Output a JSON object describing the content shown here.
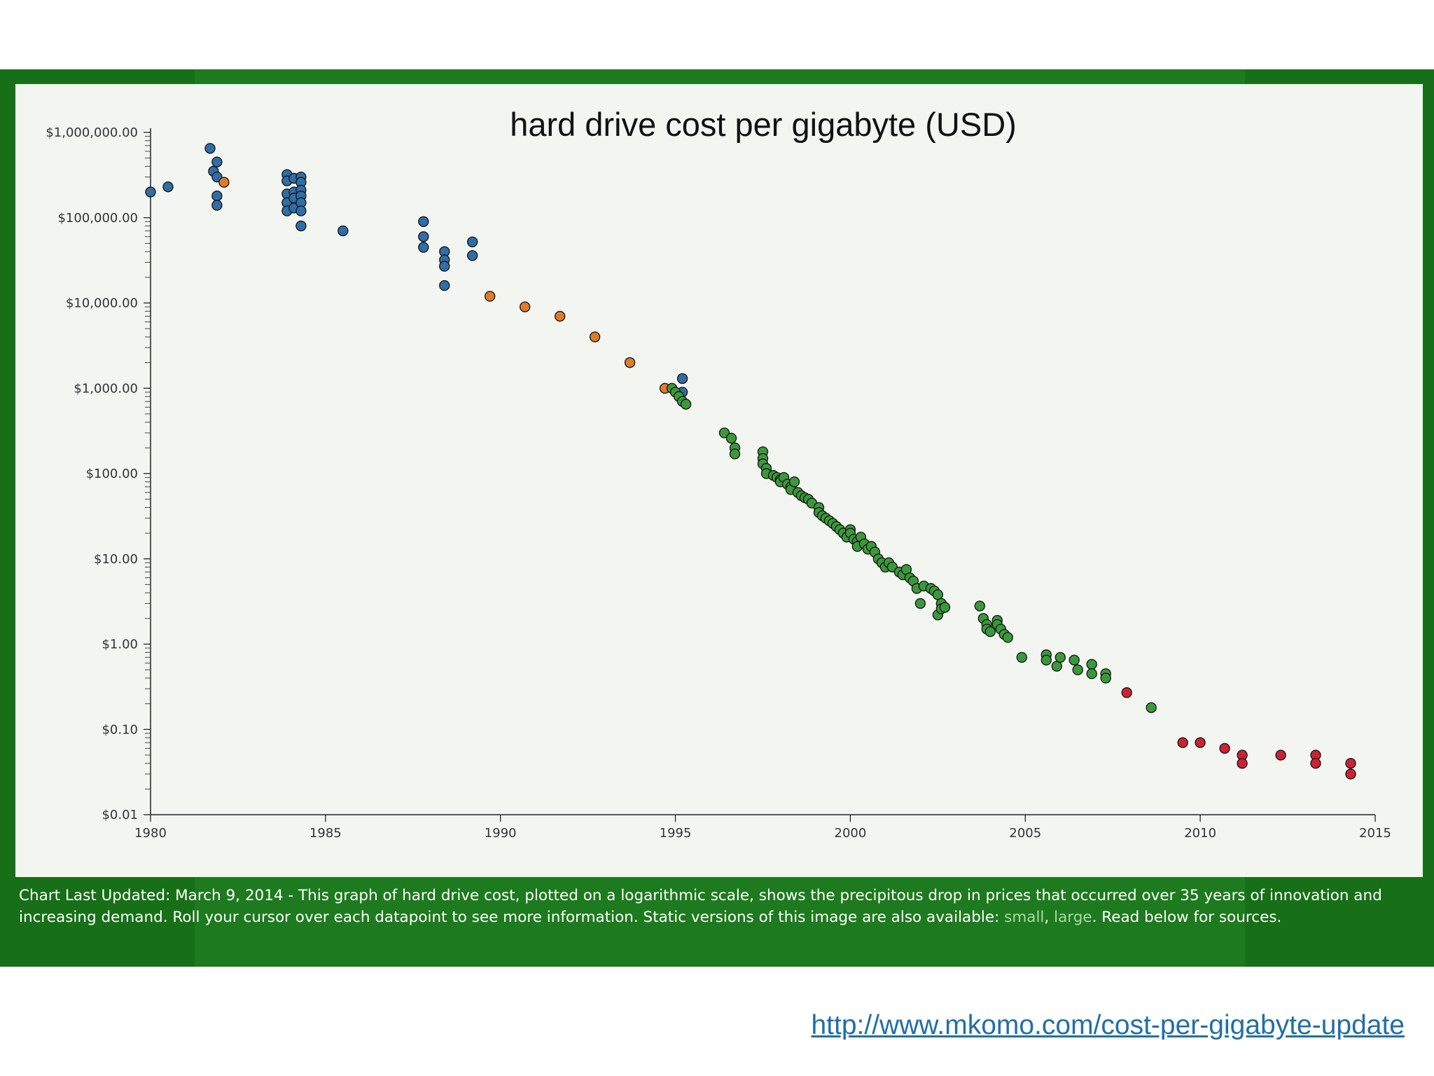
{
  "caption": {
    "lead": "Chart Last Updated: March 9, 2014 - This graph of hard drive cost, plotted on a logarithmic scale, shows the precipitous drop in prices that occurred over 35 years of innovation and increasing demand. Roll your cursor over each datapoint to see more information. Static versions of this image are also available: ",
    "link_small": "small",
    "sep": ", ",
    "link_large": "large",
    "tail": ". Read below for sources."
  },
  "source_url": "http://www.mkomo.com/cost-per-gigabyte-update",
  "colors": {
    "frame": "#1e7a1e",
    "panel": "#f3f5f1",
    "blue": "#2f6ea6",
    "orange": "#e07b2a",
    "green": "#3a9a3a",
    "red": "#cc2233"
  },
  "chart_data": {
    "type": "scatter",
    "title": "hard drive cost per gigabyte (USD)",
    "xlabel": "",
    "ylabel": "",
    "xlim": [
      1980,
      2015
    ],
    "ylim": [
      0.01,
      1000000
    ],
    "yscale": "log",
    "x_ticks": [
      "1980",
      "1985",
      "1990",
      "1995",
      "2000",
      "2005",
      "2010",
      "2015"
    ],
    "y_ticks": [
      "$1,000,000.00",
      "$100,000.00",
      "$10,000.00",
      "$1,000.00",
      "$100.00",
      "$10.00",
      "$1.00",
      "$0.10",
      "$0.01"
    ],
    "grid": false,
    "legend": "none",
    "series": [
      {
        "color": "blue",
        "points": [
          [
            1980.0,
            200000
          ],
          [
            1980.5,
            230000
          ],
          [
            1981.7,
            650000
          ],
          [
            1981.8,
            350000
          ],
          [
            1981.9,
            450000
          ],
          [
            1981.9,
            300000
          ],
          [
            1981.9,
            180000
          ],
          [
            1981.9,
            140000
          ],
          [
            1983.9,
            320000
          ],
          [
            1983.9,
            270000
          ],
          [
            1983.9,
            190000
          ],
          [
            1983.9,
            150000
          ],
          [
            1983.9,
            120000
          ],
          [
            1984.1,
            290000
          ],
          [
            1984.1,
            200000
          ],
          [
            1984.1,
            170000
          ],
          [
            1984.1,
            130000
          ],
          [
            1984.3,
            300000
          ],
          [
            1984.3,
            260000
          ],
          [
            1984.3,
            210000
          ],
          [
            1984.3,
            180000
          ],
          [
            1984.3,
            150000
          ],
          [
            1984.3,
            120000
          ],
          [
            1984.3,
            80000
          ],
          [
            1985.5,
            70000
          ],
          [
            1987.8,
            90000
          ],
          [
            1987.8,
            60000
          ],
          [
            1987.8,
            45000
          ],
          [
            1988.4,
            40000
          ],
          [
            1988.4,
            32000
          ],
          [
            1988.4,
            27000
          ],
          [
            1988.4,
            16000
          ],
          [
            1989.2,
            52000
          ],
          [
            1989.2,
            36000
          ],
          [
            1995.2,
            1300
          ],
          [
            1995.2,
            900
          ]
        ]
      },
      {
        "color": "orange",
        "points": [
          [
            1982.1,
            260000
          ],
          [
            1989.7,
            12000
          ],
          [
            1990.7,
            9000
          ],
          [
            1991.7,
            7000
          ],
          [
            1992.7,
            4000
          ],
          [
            1993.7,
            2000
          ],
          [
            1994.7,
            1000
          ]
        ]
      },
      {
        "color": "green",
        "points": [
          [
            1994.9,
            1000
          ],
          [
            1995.0,
            900
          ],
          [
            1995.1,
            800
          ],
          [
            1995.2,
            700
          ],
          [
            1995.3,
            650
          ],
          [
            1996.4,
            300
          ],
          [
            1996.6,
            260
          ],
          [
            1996.7,
            200
          ],
          [
            1996.7,
            170
          ],
          [
            1997.5,
            180
          ],
          [
            1997.5,
            150
          ],
          [
            1997.5,
            130
          ],
          [
            1997.6,
            115
          ],
          [
            1997.6,
            100
          ],
          [
            1997.8,
            95
          ],
          [
            1997.9,
            90
          ],
          [
            1998.0,
            85
          ],
          [
            1998.0,
            80
          ],
          [
            1998.1,
            90
          ],
          [
            1998.2,
            75
          ],
          [
            1998.3,
            70
          ],
          [
            1998.3,
            65
          ],
          [
            1998.4,
            80
          ],
          [
            1998.5,
            60
          ],
          [
            1998.6,
            55
          ],
          [
            1998.7,
            52
          ],
          [
            1998.8,
            50
          ],
          [
            1998.9,
            45
          ],
          [
            1999.1,
            40
          ],
          [
            1999.1,
            35
          ],
          [
            1999.2,
            32
          ],
          [
            1999.3,
            30
          ],
          [
            1999.4,
            28
          ],
          [
            1999.5,
            26
          ],
          [
            1999.6,
            24
          ],
          [
            1999.7,
            22
          ],
          [
            1999.8,
            20
          ],
          [
            1999.9,
            18
          ],
          [
            2000.0,
            22
          ],
          [
            2000.0,
            20
          ],
          [
            2000.1,
            17
          ],
          [
            2000.2,
            16
          ],
          [
            2000.2,
            14
          ],
          [
            2000.3,
            18
          ],
          [
            2000.4,
            15
          ],
          [
            2000.5,
            13
          ],
          [
            2000.6,
            14
          ],
          [
            2000.7,
            12
          ],
          [
            2000.8,
            10
          ],
          [
            2000.9,
            9
          ],
          [
            2001.0,
            8
          ],
          [
            2001.1,
            9
          ],
          [
            2001.2,
            8
          ],
          [
            2001.4,
            7
          ],
          [
            2001.5,
            6.5
          ],
          [
            2001.6,
            7.5
          ],
          [
            2001.7,
            6
          ],
          [
            2001.8,
            5.5
          ],
          [
            2001.9,
            4.5
          ],
          [
            2002.0,
            3.0
          ],
          [
            2002.1,
            4.8
          ],
          [
            2002.3,
            4.5
          ],
          [
            2002.4,
            4.2
          ],
          [
            2002.5,
            3.8
          ],
          [
            2002.5,
            2.2
          ],
          [
            2002.6,
            3.0
          ],
          [
            2002.6,
            2.6
          ],
          [
            2002.7,
            2.7
          ],
          [
            2003.7,
            2.8
          ],
          [
            2003.8,
            2.0
          ],
          [
            2003.9,
            1.7
          ],
          [
            2003.9,
            1.5
          ],
          [
            2004.0,
            1.4
          ],
          [
            2004.2,
            1.9
          ],
          [
            2004.2,
            1.7
          ],
          [
            2004.3,
            1.5
          ],
          [
            2004.4,
            1.3
          ],
          [
            2004.5,
            1.2
          ],
          [
            2004.9,
            0.7
          ],
          [
            2005.6,
            0.75
          ],
          [
            2005.6,
            0.65
          ],
          [
            2005.9,
            0.55
          ],
          [
            2006.0,
            0.7
          ],
          [
            2006.4,
            0.65
          ],
          [
            2006.5,
            0.5
          ],
          [
            2006.9,
            0.58
          ],
          [
            2006.9,
            0.45
          ],
          [
            2007.3,
            0.45
          ],
          [
            2007.3,
            0.4
          ],
          [
            2008.6,
            0.18
          ]
        ]
      },
      {
        "color": "red",
        "points": [
          [
            2007.9,
            0.27
          ],
          [
            2009.5,
            0.07
          ],
          [
            2010.0,
            0.07
          ],
          [
            2010.7,
            0.06
          ],
          [
            2011.2,
            0.05
          ],
          [
            2011.2,
            0.04
          ],
          [
            2012.3,
            0.05
          ],
          [
            2013.3,
            0.05
          ],
          [
            2013.3,
            0.04
          ],
          [
            2014.3,
            0.04
          ],
          [
            2014.3,
            0.03
          ]
        ]
      }
    ]
  }
}
